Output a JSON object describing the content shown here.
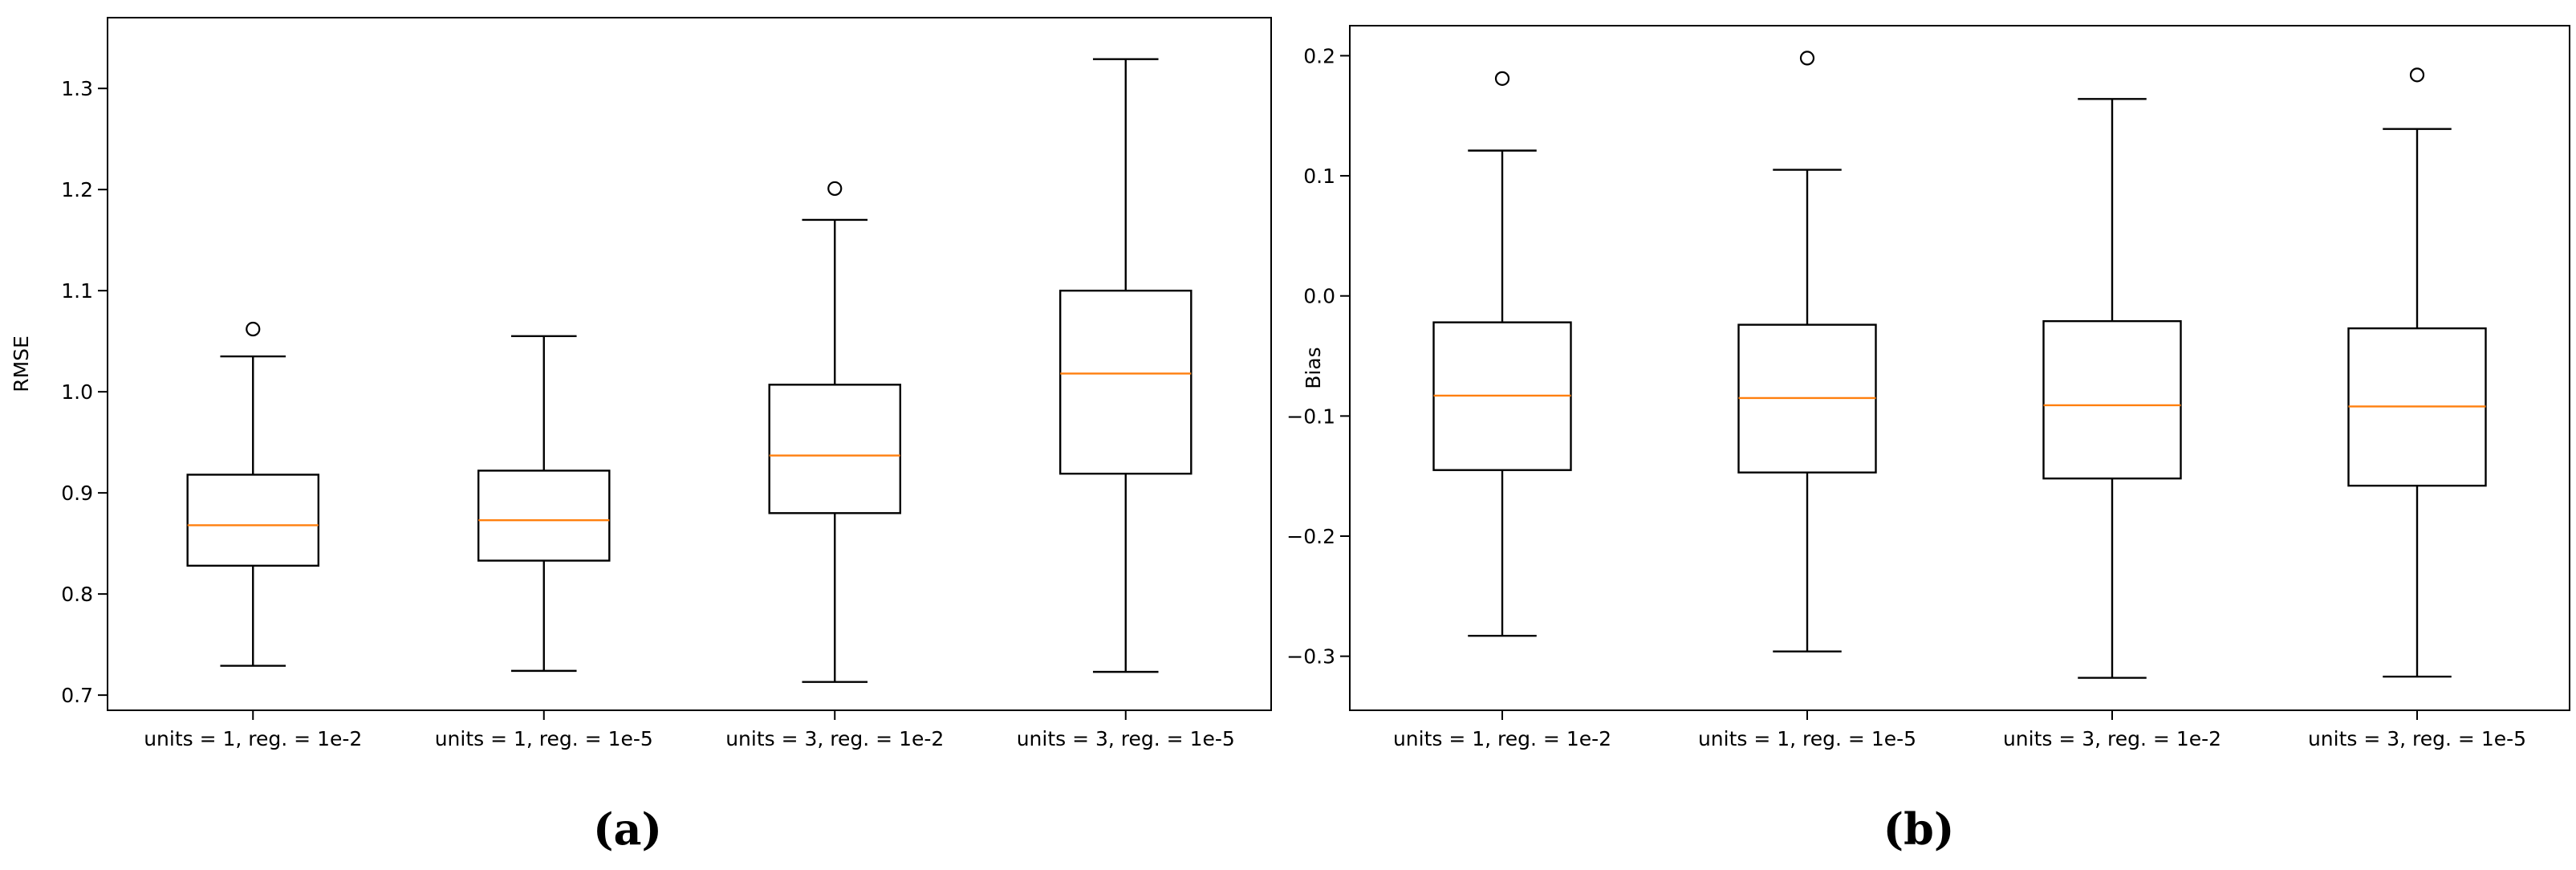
{
  "chart_data": [
    {
      "type": "box",
      "panel_label": "(a)",
      "ylabel": "RMSE",
      "xlabel": "",
      "ylim": [
        0.685,
        1.37
      ],
      "yticks": [
        "0.7",
        "0.8",
        "0.9",
        "1.0",
        "1.1",
        "1.2",
        "1.3"
      ],
      "ytick_values": [
        0.7,
        0.8,
        0.9,
        1.0,
        1.1,
        1.2,
        1.3
      ],
      "categories": [
        "units = 1, reg. = 1e-2",
        "units = 1, reg. = 1e-5",
        "units = 3, reg. = 1e-2",
        "units = 3, reg. = 1e-5"
      ],
      "boxes": [
        {
          "whisker_low": 0.729,
          "q1": 0.828,
          "median": 0.868,
          "q3": 0.918,
          "whisker_high": 1.035,
          "outliers": [
            1.062
          ]
        },
        {
          "whisker_low": 0.724,
          "q1": 0.833,
          "median": 0.873,
          "q3": 0.922,
          "whisker_high": 1.055,
          "outliers": []
        },
        {
          "whisker_low": 0.713,
          "q1": 0.88,
          "median": 0.937,
          "q3": 1.007,
          "whisker_high": 1.17,
          "outliers": [
            1.201
          ]
        },
        {
          "whisker_low": 0.723,
          "q1": 0.919,
          "median": 1.018,
          "q3": 1.1,
          "whisker_high": 1.329,
          "outliers": []
        }
      ]
    },
    {
      "type": "box",
      "panel_label": "(b)",
      "ylabel": "Bias",
      "xlabel": "",
      "ylim": [
        -0.345,
        0.225
      ],
      "yticks": [
        "−0.3",
        "−0.2",
        "−0.1",
        "0.0",
        "0.1",
        "0.2"
      ],
      "ytick_values": [
        -0.3,
        -0.2,
        -0.1,
        0.0,
        0.1,
        0.2
      ],
      "categories": [
        "units = 1, reg. = 1e-2",
        "units = 1, reg. = 1e-5",
        "units = 3, reg. = 1e-2",
        "units = 3, reg. = 1e-5"
      ],
      "boxes": [
        {
          "whisker_low": -0.283,
          "q1": -0.145,
          "median": -0.083,
          "q3": -0.022,
          "whisker_high": 0.121,
          "outliers": [
            0.181
          ]
        },
        {
          "whisker_low": -0.296,
          "q1": -0.147,
          "median": -0.085,
          "q3": -0.024,
          "whisker_high": 0.105,
          "outliers": [
            0.198
          ]
        },
        {
          "whisker_low": -0.318,
          "q1": -0.152,
          "median": -0.091,
          "q3": -0.021,
          "whisker_high": 0.164,
          "outliers": []
        },
        {
          "whisker_low": -0.317,
          "q1": -0.158,
          "median": -0.092,
          "q3": -0.027,
          "whisker_high": 0.139,
          "outliers": [
            0.184
          ]
        }
      ]
    }
  ],
  "colors": {
    "median": "#ff7f0e",
    "box": "#000000",
    "background": "#ffffff"
  }
}
